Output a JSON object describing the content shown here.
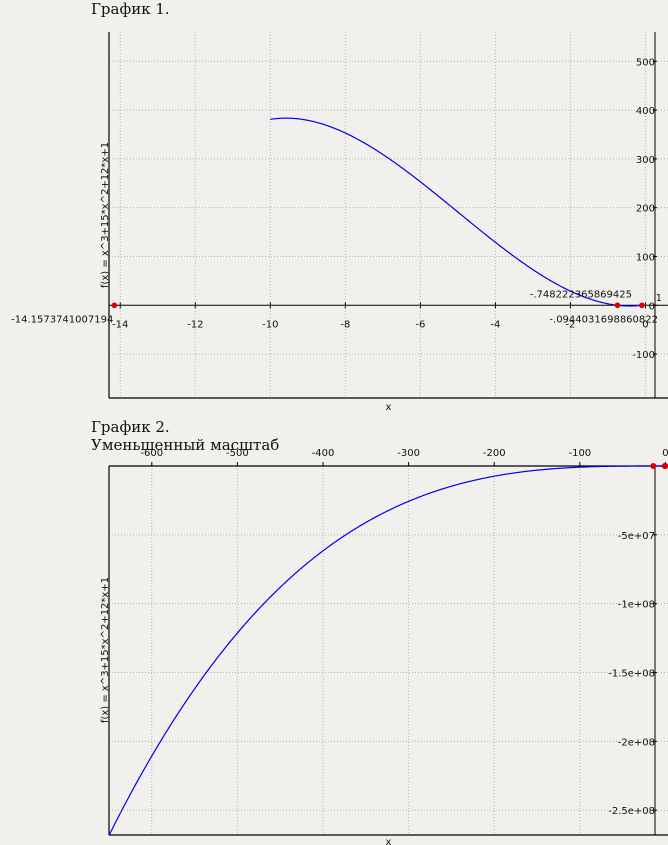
{
  "headings": {
    "graph1": "График 1.",
    "graph2": "График 2.",
    "graph2_subtitle": "Уменьшенный масштаб"
  },
  "colors": {
    "curve": "#0000ee",
    "roots": "#dd0000",
    "grid": "#b5b5b5",
    "axis": "#000000"
  },
  "chart_data": [
    {
      "type": "line",
      "function": "x^3+15*x^2+12*x+1",
      "xlabel": "x",
      "ylabel": "f(x) = x^3+15*x^2+12*x+1",
      "xlim": [
        -14.3,
        0.6
      ],
      "ylim": [
        -190,
        560
      ],
      "x_ticks": [
        -14,
        -12,
        -10,
        -8,
        -6,
        -4,
        -2,
        0
      ],
      "y_ticks": [
        -100,
        0,
        1,
        100,
        200,
        300,
        400,
        500
      ],
      "grid": true,
      "series": [
        {
          "x_range": [
            -10,
            -0.0944
          ],
          "color": "#0000ee"
        }
      ],
      "roots": [
        {
          "x": -14.1573741007194,
          "label": "-14.1573741007194"
        },
        {
          "x": -0.748222365869425,
          "label": "-.748222365869425"
        },
        {
          "x": -0.0944031698860822,
          "label": "-.0944031698860822"
        }
      ]
    },
    {
      "type": "line",
      "function": "x^3+15*x^2+12*x+1",
      "xlabel": "x",
      "ylabel": "f(x) = x^3+15*x^2+12*x+1",
      "xlim": [
        -650,
        3
      ],
      "ylim": [
        -268000000,
        0
      ],
      "x_ticks": [
        -600,
        -500,
        -400,
        -300,
        -200,
        -100,
        0
      ],
      "y_ticks": [
        -50000000,
        -100000000,
        -150000000,
        -200000000,
        -250000000
      ],
      "y_tick_labels": [
        "-5e+07",
        "-1e+08",
        "-1.5e+08",
        "-2e+08",
        "-2.5e+08"
      ],
      "grid": true,
      "series": [
        {
          "x_range": [
            -650,
            0
          ],
          "color": "#0000ee"
        }
      ],
      "roots": [
        {
          "x": -14.1573741007194
        },
        {
          "x": -0.748222365869425
        },
        {
          "x": -0.0944031698860822
        }
      ]
    }
  ]
}
